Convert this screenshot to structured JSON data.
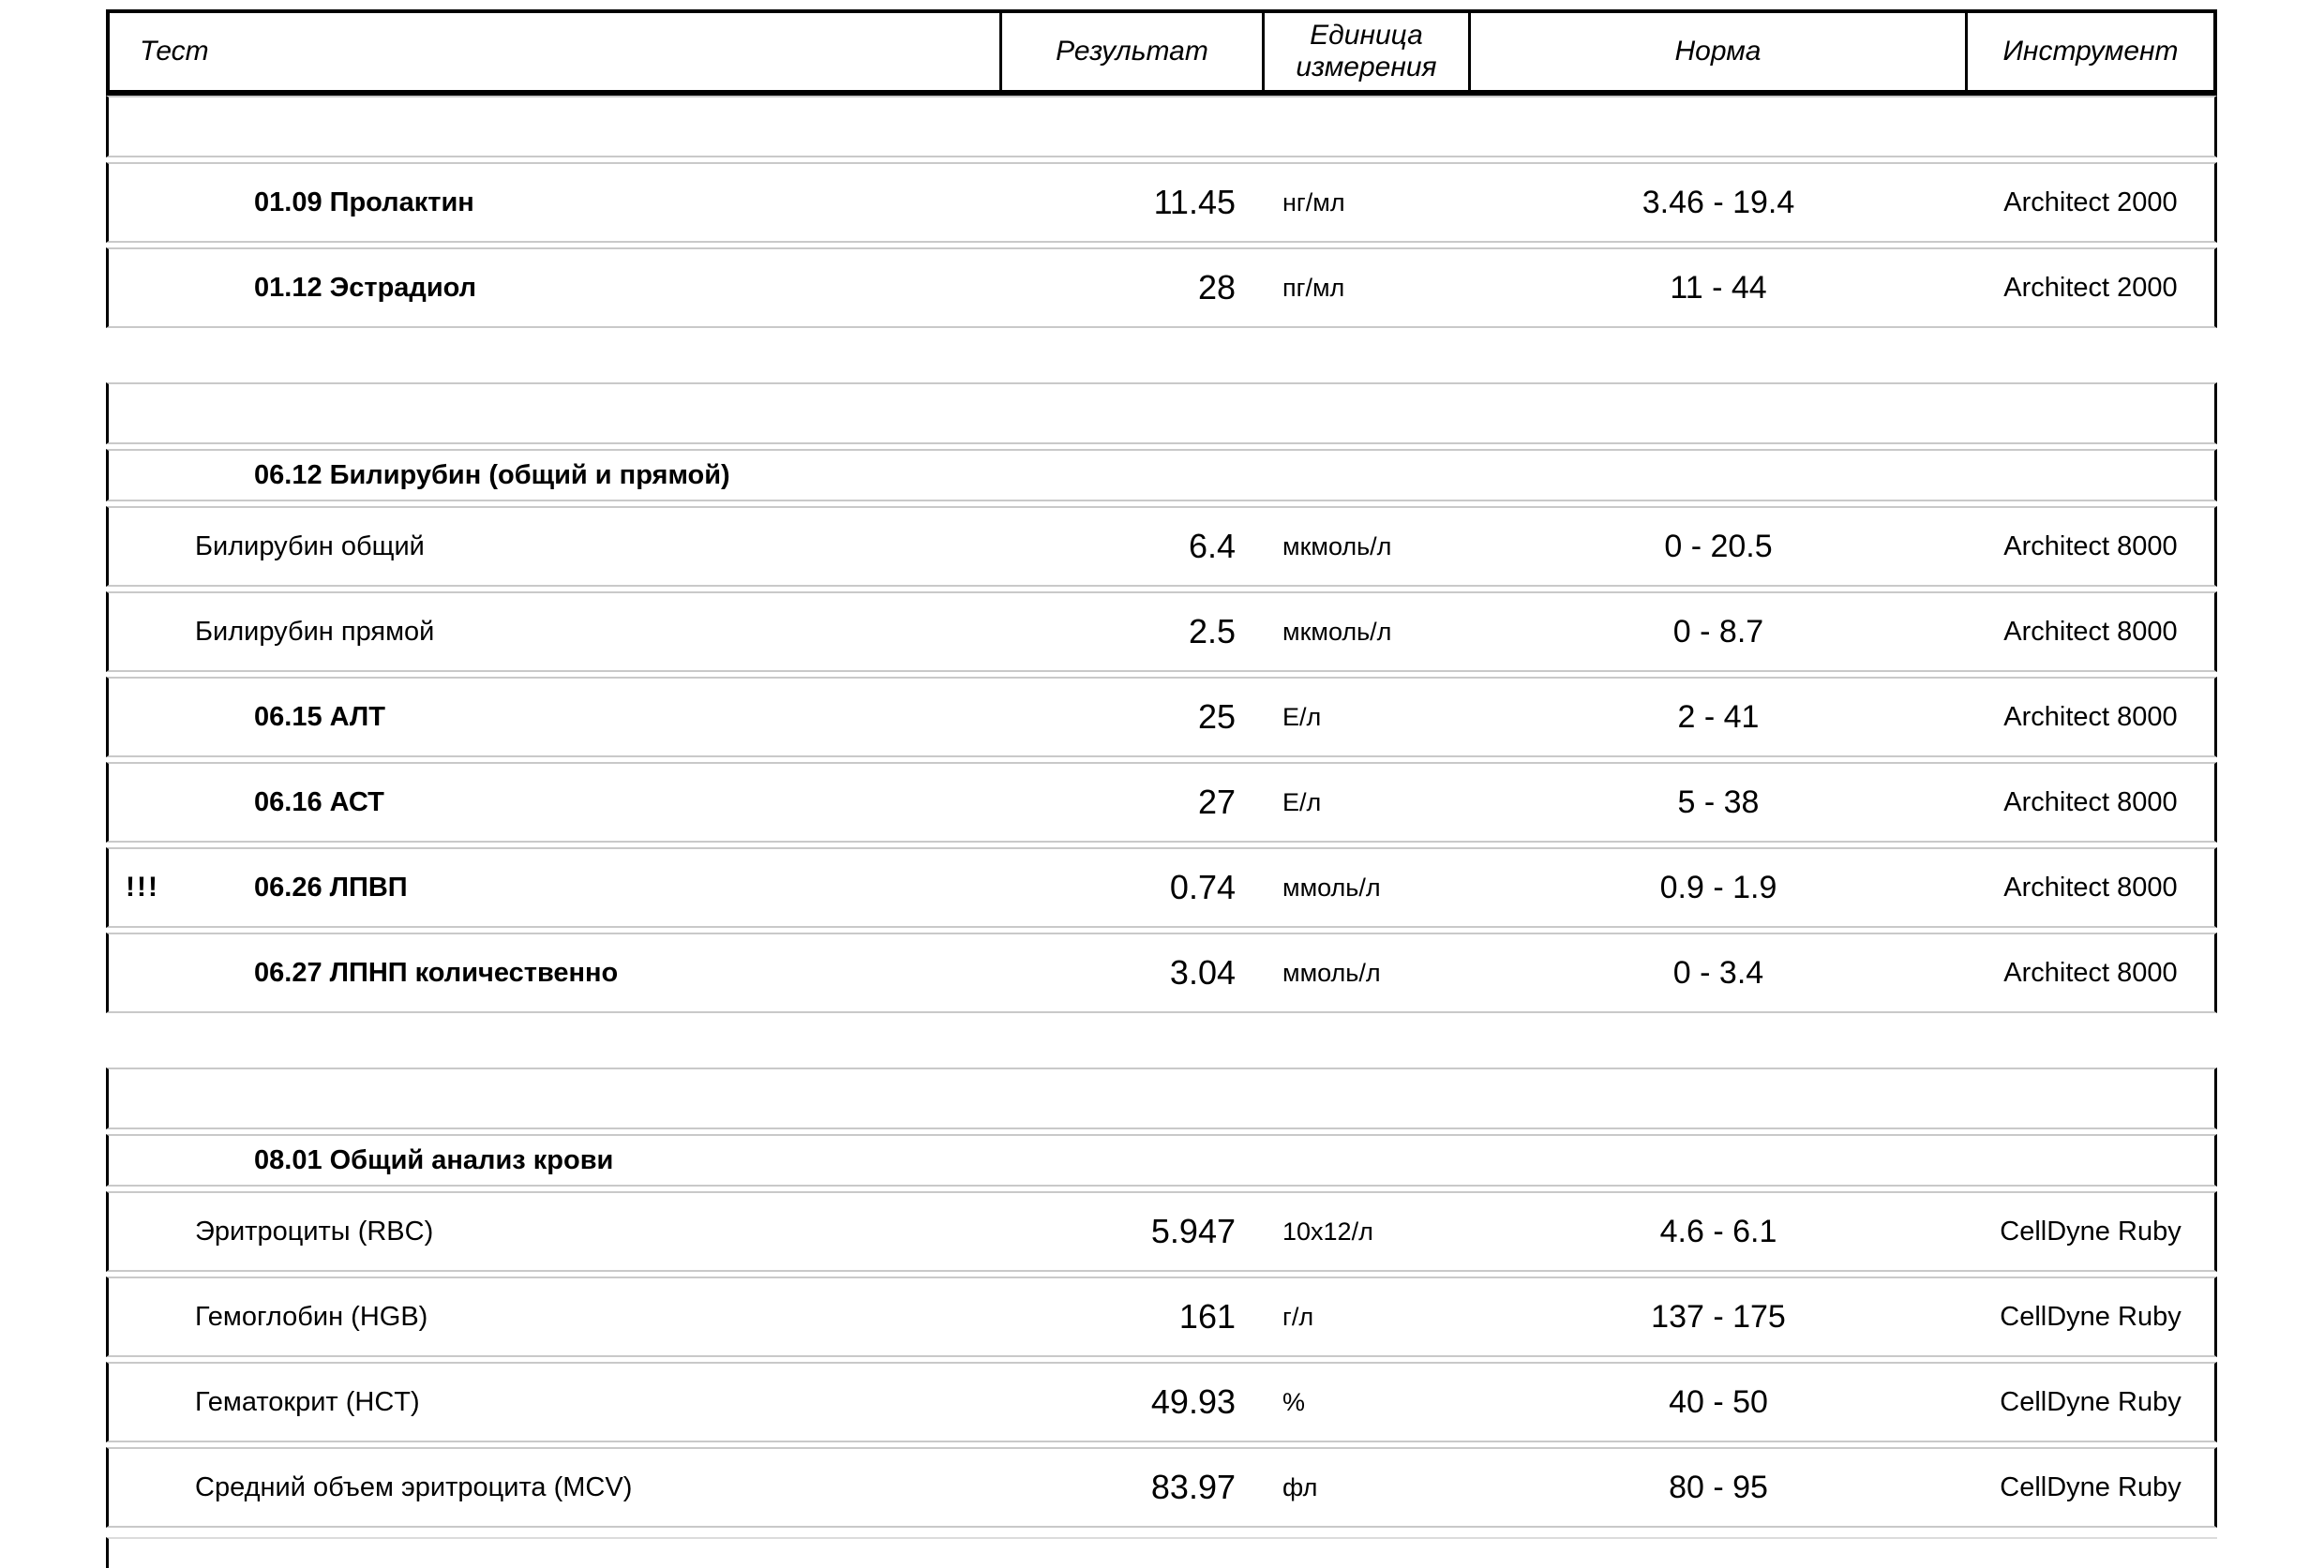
{
  "columns": {
    "test": "Тест",
    "result": "Результат",
    "unit": "Единица измерения",
    "norm": "Норма",
    "instrument": "Инструмент"
  },
  "colors": {
    "text": "#000000",
    "table_border": "#000000",
    "row_border": "#c9c9c9",
    "background": "#ffffff"
  },
  "abnormal_marker": "!!!",
  "table": {
    "blocks": [
      {
        "rows": [
          {
            "type": "spacer"
          },
          {
            "type": "data",
            "bold": true,
            "marker": "",
            "name": "01.09 Пролактин",
            "result": "11.45",
            "unit": "нг/мл",
            "norm": "3.46 - 19.4",
            "instrument": "Architect 2000"
          },
          {
            "type": "data",
            "bold": true,
            "marker": "",
            "name": "01.12 Эстрадиол",
            "result": "28",
            "unit": "пг/мл",
            "norm": "11 - 44",
            "instrument": "Architect 2000"
          }
        ]
      },
      {
        "rows": [
          {
            "type": "spacer"
          },
          {
            "type": "section",
            "bold": true,
            "marker": "",
            "name": "06.12 Билирубин (общий и прямой)",
            "result": "",
            "unit": "",
            "norm": "",
            "instrument": ""
          },
          {
            "type": "data",
            "bold": false,
            "marker": "",
            "name": "Билирубин общий",
            "result": "6.4",
            "unit": "мкмоль/л",
            "norm": "0 - 20.5",
            "instrument": "Architect 8000"
          },
          {
            "type": "data",
            "bold": false,
            "marker": "",
            "name": "Билирубин прямой",
            "result": "2.5",
            "unit": "мкмоль/л",
            "norm": "0 - 8.7",
            "instrument": "Architect 8000"
          },
          {
            "type": "data",
            "bold": true,
            "marker": "",
            "name": "06.15 АЛТ",
            "result": "25",
            "unit": "Е/л",
            "norm": "2 - 41",
            "instrument": "Architect 8000"
          },
          {
            "type": "data",
            "bold": true,
            "marker": "",
            "name": "06.16 АСТ",
            "result": "27",
            "unit": "Е/л",
            "norm": "5 - 38",
            "instrument": "Architect 8000"
          },
          {
            "type": "data",
            "bold": true,
            "marker": "!!!",
            "name": "06.26 ЛПВП",
            "result": "0.74",
            "unit": "ммоль/л",
            "norm": "0.9 - 1.9",
            "instrument": "Architect 8000"
          },
          {
            "type": "data",
            "bold": true,
            "marker": "",
            "name": "06.27 ЛПНП количественно",
            "result": "3.04",
            "unit": "ммоль/л",
            "norm": "0 - 3.4",
            "instrument": "Architect 8000"
          }
        ]
      },
      {
        "rows": [
          {
            "type": "spacer"
          },
          {
            "type": "section",
            "bold": true,
            "marker": "",
            "name": "08.01 Общий анализ крови",
            "result": "",
            "unit": "",
            "norm": "",
            "instrument": ""
          },
          {
            "type": "data",
            "bold": false,
            "marker": "",
            "name": "Эритроциты (RBC)",
            "result": "5.947",
            "unit": "10x12/л",
            "norm": "4.6 - 6.1",
            "instrument": "CellDyne Ruby"
          },
          {
            "type": "data",
            "bold": false,
            "marker": "",
            "name": "Гемоглобин (HGB)",
            "result": "161",
            "unit": "г/л",
            "norm": "137 - 175",
            "instrument": "CellDyne Ruby"
          },
          {
            "type": "data",
            "bold": false,
            "marker": "",
            "name": "Гематокрит (HCT)",
            "result": "49.93",
            "unit": "%",
            "norm": "40 - 50",
            "instrument": "CellDyne Ruby"
          },
          {
            "type": "data",
            "bold": false,
            "marker": "",
            "name": "Средний объем эритроцита (MCV)",
            "result": "83.97",
            "unit": "фл",
            "norm": "80 - 95",
            "instrument": "CellDyne Ruby"
          }
        ]
      }
    ]
  }
}
